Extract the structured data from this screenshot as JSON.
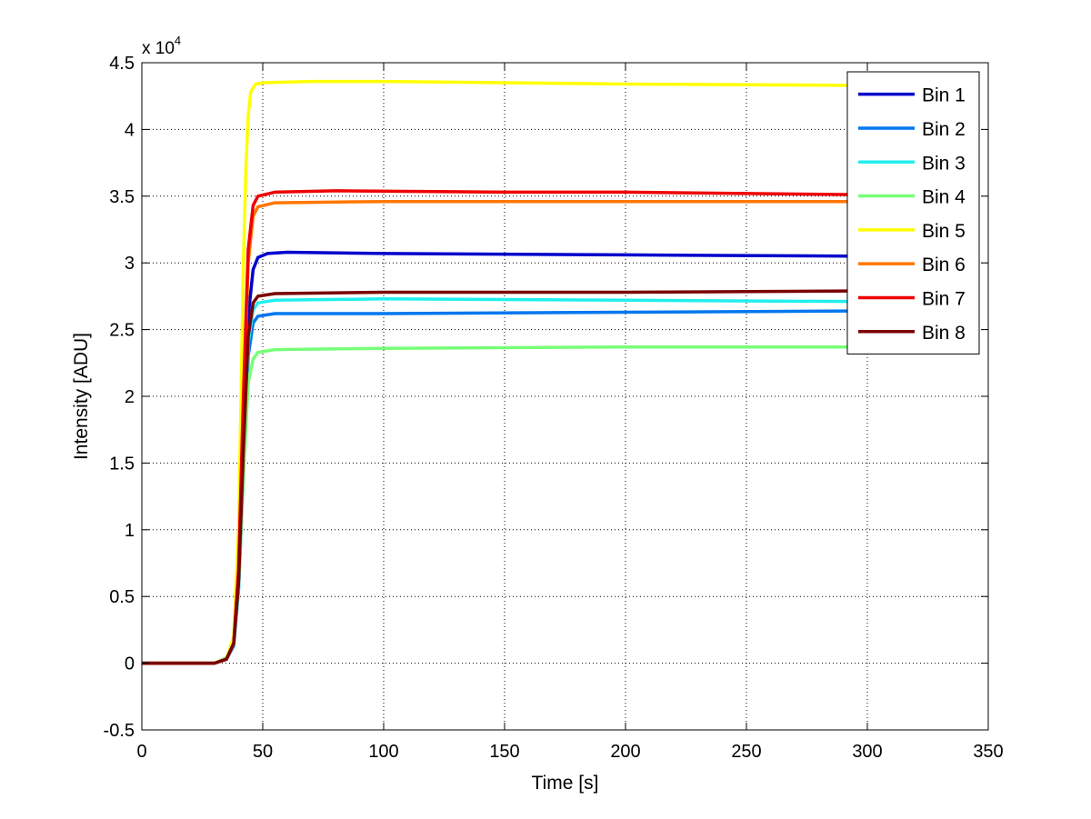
{
  "chart_data": {
    "type": "line",
    "title": "",
    "xlabel": "Time [s]",
    "ylabel": "Intensity [ADU]",
    "xlim": [
      0,
      350
    ],
    "ylim": [
      -0.5,
      4.5
    ],
    "y_multiplier": "x 10",
    "y_multiplier_exponent": "4",
    "xticks": [
      "0",
      "50",
      "100",
      "150",
      "200",
      "250",
      "300",
      "350"
    ],
    "yticks": [
      "-0.5",
      "0",
      "0.5",
      "1",
      "1.5",
      "2",
      "2.5",
      "3",
      "3.5",
      "4",
      "4.5"
    ],
    "grid": true,
    "legend_position": "top-right",
    "x_end": 300,
    "series": [
      {
        "name": "Bin 1",
        "color": "#0000cc",
        "points": [
          [
            0,
            0
          ],
          [
            30,
            0
          ],
          [
            35,
            0.03
          ],
          [
            38,
            0.15
          ],
          [
            40,
            0.6
          ],
          [
            42,
            1.6
          ],
          [
            44,
            2.6
          ],
          [
            46,
            2.95
          ],
          [
            48,
            3.04
          ],
          [
            52,
            3.07
          ],
          [
            60,
            3.08
          ],
          [
            100,
            3.07
          ],
          [
            200,
            3.06
          ],
          [
            300,
            3.05
          ]
        ]
      },
      {
        "name": "Bin 2",
        "color": "#0077ee",
        "points": [
          [
            0,
            0
          ],
          [
            30,
            0
          ],
          [
            35,
            0.03
          ],
          [
            38,
            0.13
          ],
          [
            40,
            0.55
          ],
          [
            42,
            1.4
          ],
          [
            44,
            2.3
          ],
          [
            46,
            2.55
          ],
          [
            48,
            2.6
          ],
          [
            55,
            2.62
          ],
          [
            100,
            2.62
          ],
          [
            200,
            2.63
          ],
          [
            300,
            2.64
          ]
        ]
      },
      {
        "name": "Bin 3",
        "color": "#22eeee",
        "points": [
          [
            0,
            0
          ],
          [
            30,
            0
          ],
          [
            35,
            0.03
          ],
          [
            38,
            0.14
          ],
          [
            40,
            0.55
          ],
          [
            42,
            1.45
          ],
          [
            44,
            2.4
          ],
          [
            46,
            2.65
          ],
          [
            48,
            2.7
          ],
          [
            55,
            2.72
          ],
          [
            100,
            2.73
          ],
          [
            200,
            2.72
          ],
          [
            300,
            2.71
          ]
        ]
      },
      {
        "name": "Bin 4",
        "color": "#77ff77",
        "points": [
          [
            0,
            0
          ],
          [
            30,
            0
          ],
          [
            35,
            0.04
          ],
          [
            38,
            0.16
          ],
          [
            40,
            0.6
          ],
          [
            42,
            1.4
          ],
          [
            44,
            2.1
          ],
          [
            46,
            2.28
          ],
          [
            48,
            2.33
          ],
          [
            55,
            2.35
          ],
          [
            100,
            2.36
          ],
          [
            200,
            2.37
          ],
          [
            300,
            2.37
          ]
        ]
      },
      {
        "name": "Bin 5",
        "color": "#ffff00",
        "points": [
          [
            0,
            0
          ],
          [
            30,
            0
          ],
          [
            35,
            0.03
          ],
          [
            38,
            0.2
          ],
          [
            40,
            1.0
          ],
          [
            41,
            2.0
          ],
          [
            42,
            3.0
          ],
          [
            43,
            3.7
          ],
          [
            44,
            4.1
          ],
          [
            45,
            4.28
          ],
          [
            47,
            4.34
          ],
          [
            50,
            4.35
          ],
          [
            70,
            4.36
          ],
          [
            100,
            4.36
          ],
          [
            200,
            4.34
          ],
          [
            300,
            4.33
          ]
        ]
      },
      {
        "name": "Bin 6",
        "color": "#ff7700",
        "points": [
          [
            0,
            0
          ],
          [
            30,
            0
          ],
          [
            35,
            0.03
          ],
          [
            38,
            0.15
          ],
          [
            40,
            0.7
          ],
          [
            42,
            1.9
          ],
          [
            44,
            3.0
          ],
          [
            46,
            3.35
          ],
          [
            48,
            3.42
          ],
          [
            55,
            3.45
          ],
          [
            100,
            3.46
          ],
          [
            200,
            3.46
          ],
          [
            300,
            3.46
          ]
        ]
      },
      {
        "name": "Bin 7",
        "color": "#ee0000",
        "points": [
          [
            0,
            0
          ],
          [
            30,
            0
          ],
          [
            35,
            0.03
          ],
          [
            38,
            0.15
          ],
          [
            40,
            0.7
          ],
          [
            42,
            2.0
          ],
          [
            44,
            3.1
          ],
          [
            46,
            3.43
          ],
          [
            48,
            3.5
          ],
          [
            55,
            3.53
          ],
          [
            80,
            3.54
          ],
          [
            150,
            3.53
          ],
          [
            200,
            3.53
          ],
          [
            300,
            3.51
          ]
        ]
      },
      {
        "name": "Bin 8",
        "color": "#7a0000",
        "points": [
          [
            0,
            0
          ],
          [
            30,
            0
          ],
          [
            35,
            0.03
          ],
          [
            38,
            0.15
          ],
          [
            40,
            0.6
          ],
          [
            42,
            1.6
          ],
          [
            44,
            2.45
          ],
          [
            46,
            2.7
          ],
          [
            48,
            2.75
          ],
          [
            55,
            2.77
          ],
          [
            100,
            2.78
          ],
          [
            200,
            2.78
          ],
          [
            300,
            2.79
          ]
        ]
      }
    ]
  }
}
